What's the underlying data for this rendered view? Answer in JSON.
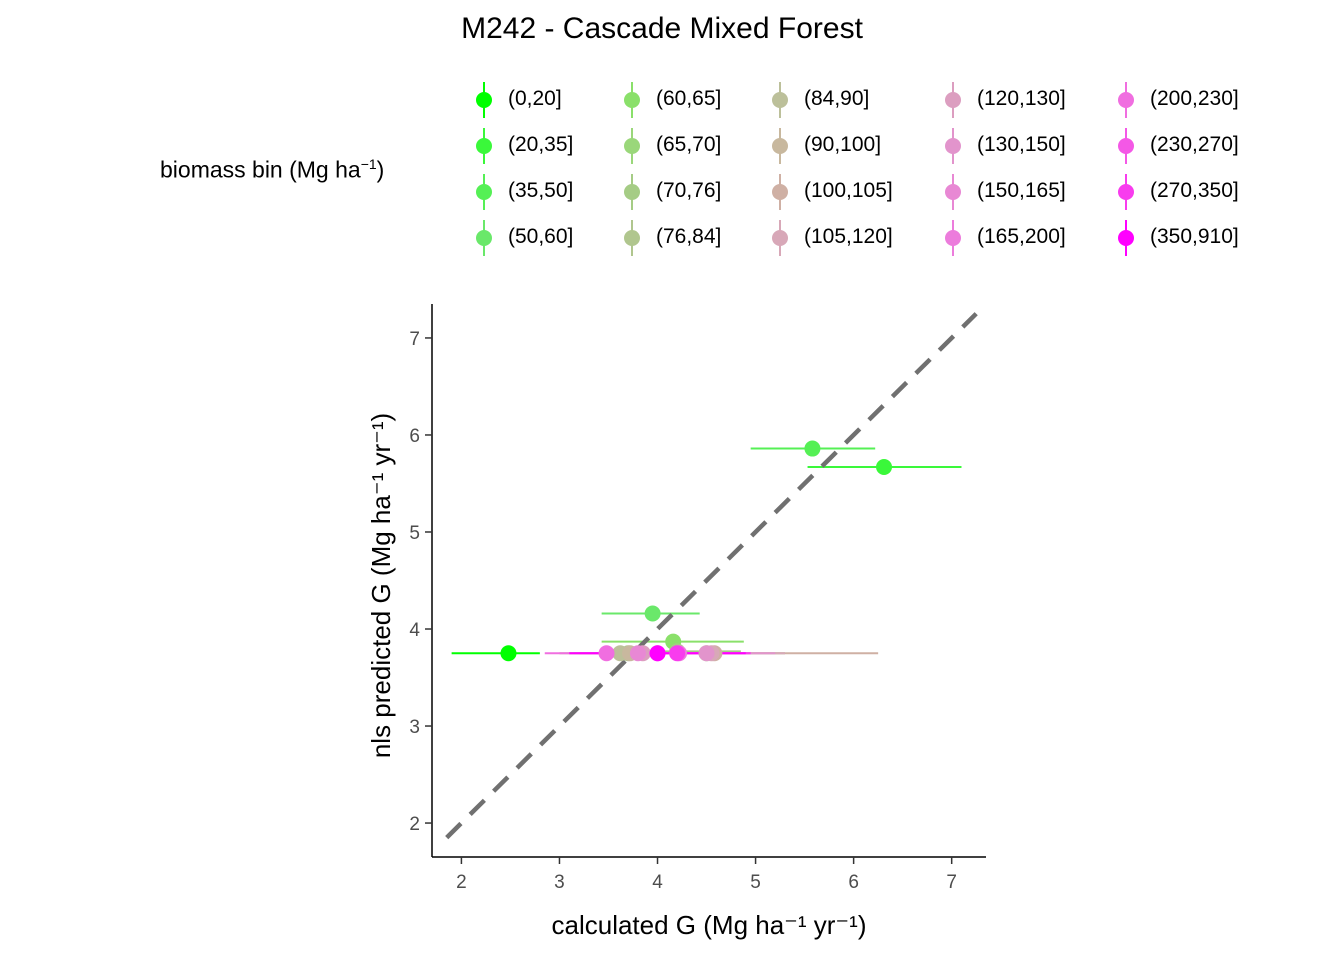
{
  "title": "M242 - Cascade Mixed Forest",
  "legend": {
    "title_text": "biomass bin (Mg ha",
    "title_sup": "−1",
    "title_close": ")",
    "items": [
      {
        "label": "(0,20]",
        "color": "#00ff00"
      },
      {
        "label": "(20,35]",
        "color": "#3af83a"
      },
      {
        "label": "(35,50]",
        "color": "#55f055"
      },
      {
        "label": "(50,60]",
        "color": "#6ae86a"
      },
      {
        "label": "(60,65]",
        "color": "#8ae06a"
      },
      {
        "label": "(65,70]",
        "color": "#9ad77a"
      },
      {
        "label": "(70,76]",
        "color": "#a5cc85"
      },
      {
        "label": "(76,84]",
        "color": "#b0c68e"
      },
      {
        "label": "(84,90]",
        "color": "#bcc09a"
      },
      {
        "label": "(90,100]",
        "color": "#c8b89e"
      },
      {
        "label": "(100,105]",
        "color": "#cfb0a4"
      },
      {
        "label": "(105,120]",
        "color": "#d8a8b8"
      },
      {
        "label": "(120,130]",
        "color": "#dc9ec0"
      },
      {
        "label": "(130,150]",
        "color": "#e294cc"
      },
      {
        "label": "(150,165]",
        "color": "#e888d4"
      },
      {
        "label": "(165,200]",
        "color": "#ec7cdc"
      },
      {
        "label": "(200,230]",
        "color": "#f06ee0"
      },
      {
        "label": "(230,270]",
        "color": "#f458e6"
      },
      {
        "label": "(270,350]",
        "color": "#f83cee"
      },
      {
        "label": "(350,910]",
        "color": "#ff00ff"
      }
    ]
  },
  "chart_data": {
    "type": "scatter",
    "title": "M242 - Cascade Mixed Forest",
    "xlabel": "calculated G (Mg ha⁻¹ yr⁻¹)",
    "ylabel": "nls predicted G (Mg ha⁻¹ yr⁻¹)",
    "xlim": [
      1.7,
      7.35
    ],
    "ylim": [
      1.65,
      7.35
    ],
    "x_ticks": [
      2,
      3,
      4,
      5,
      6,
      7
    ],
    "y_ticks": [
      2,
      3,
      4,
      5,
      6,
      7
    ],
    "reference_line": {
      "style": "dashed",
      "color": "#707070",
      "slope": 1,
      "intercept": 0
    },
    "grid": false,
    "legend_position": "top",
    "series": [
      {
        "name": "(0,20]",
        "x": 2.48,
        "y": 3.75,
        "xmin": 1.9,
        "xmax": 2.8,
        "color": "#00ff00"
      },
      {
        "name": "(20,35]",
        "x": 6.31,
        "y": 5.67,
        "xmin": 5.53,
        "xmax": 7.1,
        "color": "#3af83a"
      },
      {
        "name": "(35,50]",
        "x": 5.58,
        "y": 5.86,
        "xmin": 4.95,
        "xmax": 6.22,
        "color": "#55f055"
      },
      {
        "name": "(50,60]",
        "x": 3.95,
        "y": 4.16,
        "xmin": 3.43,
        "xmax": 4.43,
        "color": "#6ae86a"
      },
      {
        "name": "(60,65]",
        "x": 4.16,
        "y": 3.87,
        "xmin": 3.43,
        "xmax": 4.88,
        "color": "#8ae06a"
      },
      {
        "name": "(65,70]",
        "x": 4.5,
        "y": 3.75,
        "xmin": 3.6,
        "xmax": 5.3,
        "color": "#9ad77a"
      },
      {
        "name": "(70,76]",
        "x": 4.2,
        "y": 3.77,
        "xmin": 3.45,
        "xmax": 4.85,
        "color": "#a5cc85"
      },
      {
        "name": "(76,84]",
        "x": 3.7,
        "y": 3.75,
        "xmin": 3.1,
        "xmax": 4.3,
        "color": "#b0c68e"
      },
      {
        "name": "(84,90]",
        "x": 3.62,
        "y": 3.75,
        "xmin": 3.0,
        "xmax": 4.25,
        "color": "#bcc09a"
      },
      {
        "name": "(90,100]",
        "x": 3.72,
        "y": 3.75,
        "xmin": 3.15,
        "xmax": 4.4,
        "color": "#c8b89e"
      },
      {
        "name": "(100,105]",
        "x": 4.58,
        "y": 3.75,
        "xmin": 3.65,
        "xmax": 6.25,
        "color": "#cfb0a4"
      },
      {
        "name": "(105,120]",
        "x": 4.55,
        "y": 3.75,
        "xmin": 3.7,
        "xmax": 5.3,
        "color": "#d8a8b8"
      },
      {
        "name": "(120,130]",
        "x": 3.85,
        "y": 3.75,
        "xmin": 3.3,
        "xmax": 4.4,
        "color": "#dc9ec0"
      },
      {
        "name": "(130,150]",
        "x": 4.5,
        "y": 3.75,
        "xmin": 3.8,
        "xmax": 5.2,
        "color": "#e294cc"
      },
      {
        "name": "(150,165]",
        "x": 3.8,
        "y": 3.75,
        "xmin": 3.3,
        "xmax": 4.4,
        "color": "#e888d4"
      },
      {
        "name": "(165,200]",
        "x": 4.22,
        "y": 3.75,
        "xmin": 3.5,
        "xmax": 4.95,
        "color": "#ec7cdc"
      },
      {
        "name": "(200,230]",
        "x": 3.48,
        "y": 3.75,
        "xmin": 2.85,
        "xmax": 4.1,
        "color": "#f06ee0"
      },
      {
        "name": "(230,270]",
        "x": 4.0,
        "y": 3.75,
        "xmin": 3.2,
        "xmax": 4.8,
        "color": "#f458e6"
      },
      {
        "name": "(270,350]",
        "x": 4.2,
        "y": 3.75,
        "xmin": 3.45,
        "xmax": 4.95,
        "color": "#f83cee"
      },
      {
        "name": "(350,910]",
        "x": 4.0,
        "y": 3.75,
        "xmin": 3.1,
        "xmax": 4.9,
        "color": "#ff00ff"
      }
    ]
  }
}
